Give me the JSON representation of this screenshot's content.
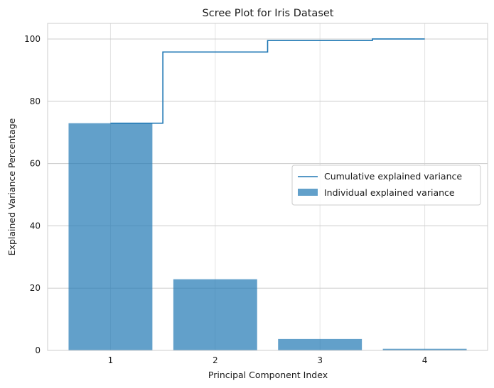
{
  "chart_data": {
    "type": "bar",
    "title": "Scree Plot for Iris Dataset",
    "xlabel": "Principal Component Index",
    "ylabel": "Explained Variance Percentage",
    "categories": [
      "1",
      "2",
      "3",
      "4"
    ],
    "x": [
      1,
      2,
      3,
      4
    ],
    "xlim": [
      0.4,
      4.6
    ],
    "ylim": [
      0,
      105
    ],
    "yticks": [
      0,
      20,
      40,
      60,
      80,
      100
    ],
    "grid": true,
    "legend_position": "center-right",
    "series": [
      {
        "name": "Individual explained variance",
        "kind": "bar",
        "values": [
          72.96,
          22.85,
          3.67,
          0.52
        ],
        "color": "#1f77b4",
        "alpha": 0.7
      },
      {
        "name": "Cumulative explained variance",
        "kind": "step",
        "values": [
          72.96,
          95.81,
          99.48,
          100.0
        ],
        "color": "#1f77b4"
      }
    ]
  }
}
